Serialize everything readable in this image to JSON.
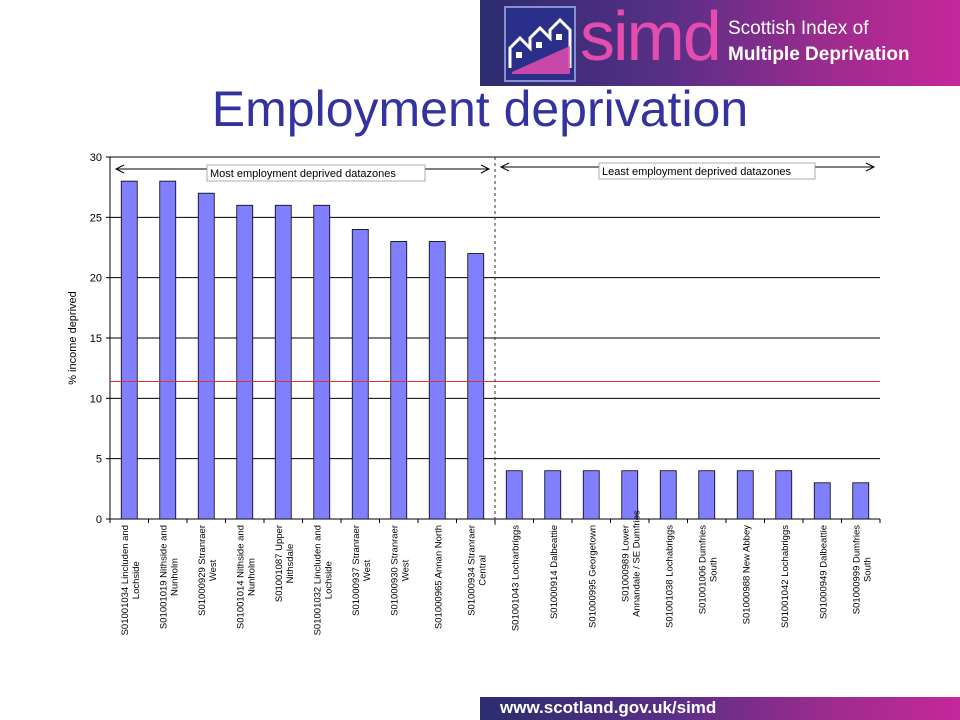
{
  "header": {
    "logo_text": "simd",
    "logo_line1": "Scottish Index of",
    "logo_line2": "Multiple Deprivation",
    "colors": {
      "banner_start": "#2a2d6e",
      "banner_end": "#c4289a",
      "logo_pink": "#e44cae"
    }
  },
  "page": {
    "title": "Employment deprivation"
  },
  "footer": {
    "url": "www.scotland.gov.uk/simd"
  },
  "chart_data": {
    "type": "bar",
    "title": "",
    "xlabel": "",
    "ylabel": "% income deprived",
    "ylim": [
      0,
      30
    ],
    "yticks": [
      0,
      5,
      10,
      15,
      20,
      25,
      30
    ],
    "grid": true,
    "bar_color": "#8080ff",
    "reference_line": {
      "value": 11.4,
      "color": "#e03030"
    },
    "divider_after_index": 9,
    "annotations": [
      {
        "text": "Most employment deprived datazones",
        "from_index": 0,
        "to_index": 9
      },
      {
        "text": "Least employment deprived datazones",
        "from_index": 10,
        "to_index": 19
      }
    ],
    "categories": [
      [
        "S01001034 Lincluden and",
        "Lochside"
      ],
      [
        "S01001019 Nithside and",
        "Nunholm"
      ],
      [
        "S01000929 Stranraer",
        "West"
      ],
      [
        "S01001014 Nithside and",
        "Nunholm"
      ],
      [
        "S01001087 Upper",
        "Nithsdale"
      ],
      [
        "S01001032 Lincluden and",
        "Lochside"
      ],
      [
        "S01000937 Stranraer",
        "West"
      ],
      [
        "S01000930 Stranraer",
        "West"
      ],
      [
        "S01000965 Annan North"
      ],
      [
        "S01000934 Stranraer",
        "Central"
      ],
      [
        "S01001043 Locharbriggs"
      ],
      [
        "S01000914 Dalbeattie"
      ],
      [
        "S01000995 Georgetown"
      ],
      [
        "S01000989 Lower",
        "Annandale / SE Dumfries"
      ],
      [
        "S01001038 Lochabriggs"
      ],
      [
        "S01001006 Dumfries",
        "South"
      ],
      [
        "S01000988 New Abbey"
      ],
      [
        "S01001042 Lochabriggs"
      ],
      [
        "S01000949 Dalbeattie"
      ],
      [
        "S01000999 Dumfries",
        "South"
      ]
    ],
    "values": [
      28,
      28,
      27,
      26,
      26,
      26,
      24,
      23,
      23,
      22,
      4,
      4,
      4,
      4,
      4,
      4,
      4,
      4,
      3,
      3
    ]
  }
}
